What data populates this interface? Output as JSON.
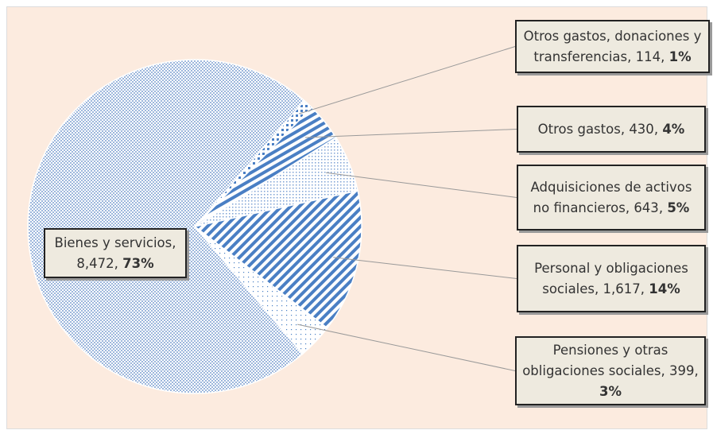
{
  "chart_data": {
    "type": "pie",
    "categories": [
      "Bienes y servicios",
      "Otros gastos, donaciones y transferencias",
      "Otros gastos",
      "Adquisiciones de activos no financieros",
      "Personal y obligaciones sociales",
      "Pensiones y otras obligaciones sociales"
    ],
    "values": [
      8472,
      114,
      430,
      643,
      1617,
      399
    ],
    "value_labels": [
      "8,472",
      "114",
      "430",
      "643",
      "1,617",
      "399"
    ],
    "percent_labels": [
      "73%",
      "1%",
      "4%",
      "5%",
      "14%",
      "3%"
    ],
    "color": "#4a7fc4"
  }
}
